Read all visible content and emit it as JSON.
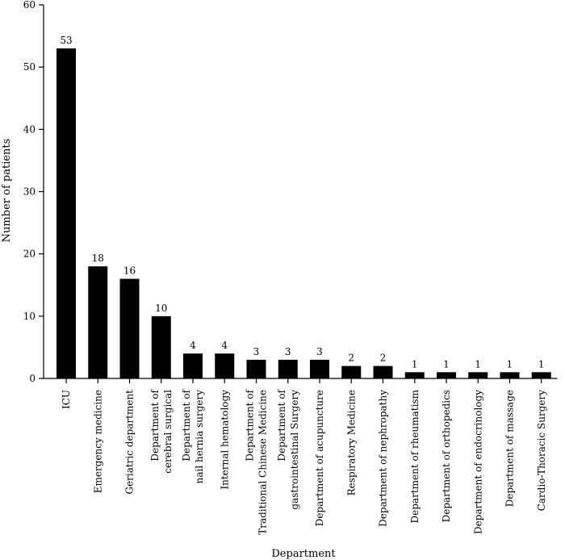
{
  "chart_data": {
    "type": "bar",
    "title": "",
    "xlabel": "Department",
    "ylabel": "Number of patients",
    "ylim": [
      0,
      60
    ],
    "yticks": [
      0,
      10,
      20,
      30,
      40,
      50,
      60
    ],
    "grid": false,
    "bar_color": "#000000",
    "categories": [
      [
        "ICU"
      ],
      [
        "Emergency medicine"
      ],
      [
        "Geriatric department"
      ],
      [
        "Department of",
        "cerebral surgical"
      ],
      [
        "Department of",
        "nail hernia surgery"
      ],
      [
        "Internal hematology"
      ],
      [
        "Department of",
        "Traditional Chinese Medicine"
      ],
      [
        "Department of",
        "gastrointestinal Surgery"
      ],
      [
        "Department of acupuncture"
      ],
      [
        "Respiratory Medicine"
      ],
      [
        "Department of nephropathy"
      ],
      [
        "Department of rheumatism"
      ],
      [
        "Department of orthopedics"
      ],
      [
        "Department of endocrinology"
      ],
      [
        "Department of massage"
      ],
      [
        "Cardio-Thoracic Surgery"
      ]
    ],
    "values": [
      53,
      18,
      16,
      10,
      4,
      4,
      3,
      3,
      3,
      2,
      2,
      1,
      1,
      1,
      1,
      1
    ]
  }
}
